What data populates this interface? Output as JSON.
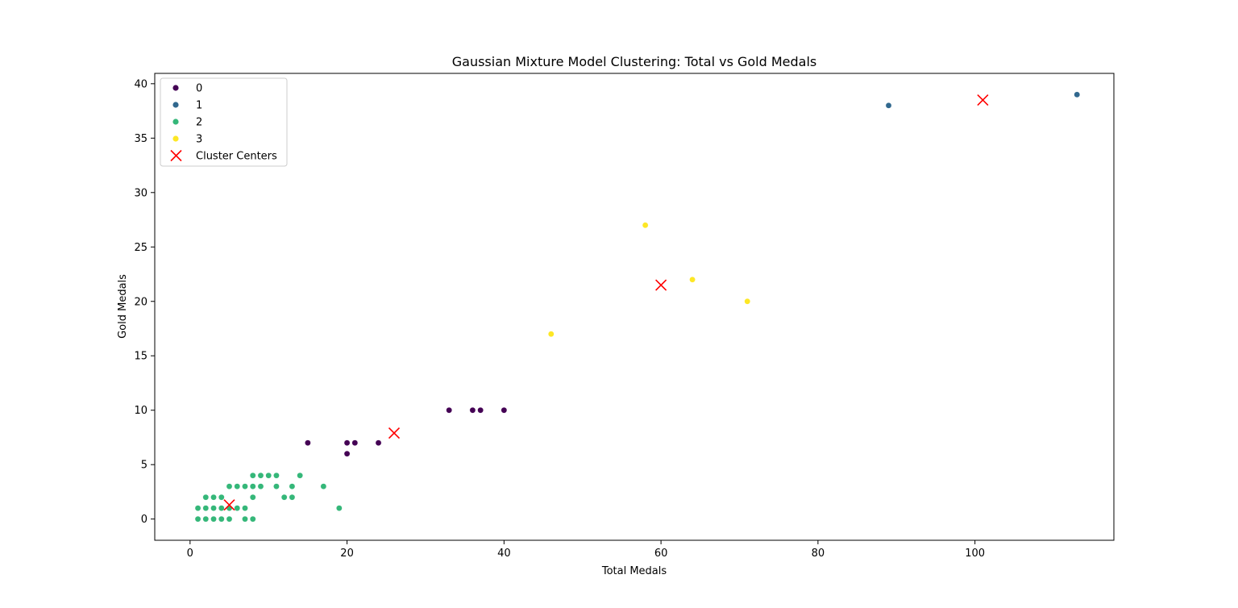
{
  "chart_data": {
    "type": "scatter",
    "title": "Gaussian Mixture Model Clustering: Total vs Gold Medals",
    "xlabel": "Total Medals",
    "ylabel": "Gold Medals",
    "xlim": [
      -4.5,
      117.7
    ],
    "ylim": [
      -1.95,
      40.95
    ],
    "xticks": [
      0,
      20,
      40,
      60,
      80,
      100
    ],
    "yticks": [
      0,
      5,
      10,
      15,
      20,
      25,
      30,
      35,
      40
    ],
    "grid": false,
    "legend_placement": "top-left",
    "series": [
      {
        "name": "0",
        "color": "#440154",
        "points": [
          [
            15,
            7
          ],
          [
            20,
            7
          ],
          [
            20,
            6
          ],
          [
            21,
            7
          ],
          [
            24,
            7
          ],
          [
            33,
            10
          ],
          [
            36,
            10
          ],
          [
            37,
            10
          ],
          [
            40,
            10
          ]
        ]
      },
      {
        "name": "1",
        "color": "#31688e",
        "points": [
          [
            89,
            38
          ],
          [
            113,
            39
          ]
        ]
      },
      {
        "name": "2",
        "color": "#35b779",
        "points": [
          [
            1,
            0
          ],
          [
            1,
            1
          ],
          [
            2,
            0
          ],
          [
            2,
            1
          ],
          [
            2,
            2
          ],
          [
            3,
            0
          ],
          [
            3,
            1
          ],
          [
            3,
            2
          ],
          [
            4,
            0
          ],
          [
            4,
            1
          ],
          [
            4,
            2
          ],
          [
            5,
            0
          ],
          [
            5,
            1
          ],
          [
            5,
            3
          ],
          [
            6,
            1
          ],
          [
            6,
            3
          ],
          [
            7,
            0
          ],
          [
            7,
            1
          ],
          [
            7,
            3
          ],
          [
            8,
            0
          ],
          [
            8,
            2
          ],
          [
            8,
            3
          ],
          [
            8,
            4
          ],
          [
            9,
            3
          ],
          [
            9,
            4
          ],
          [
            10,
            4
          ],
          [
            11,
            3
          ],
          [
            11,
            4
          ],
          [
            12,
            2
          ],
          [
            13,
            2
          ],
          [
            13,
            3
          ],
          [
            14,
            4
          ],
          [
            17,
            3
          ],
          [
            19,
            1
          ]
        ]
      },
      {
        "name": "3",
        "color": "#fde725",
        "points": [
          [
            46,
            17
          ],
          [
            58,
            27
          ],
          [
            64,
            22
          ],
          [
            71,
            20
          ]
        ]
      }
    ],
    "centers": {
      "name": "Cluster Centers",
      "color": "#ff0000",
      "marker": "x",
      "points": [
        [
          5,
          1.3
        ],
        [
          26,
          7.9
        ],
        [
          60,
          21.5
        ],
        [
          101,
          38.5
        ]
      ]
    }
  }
}
